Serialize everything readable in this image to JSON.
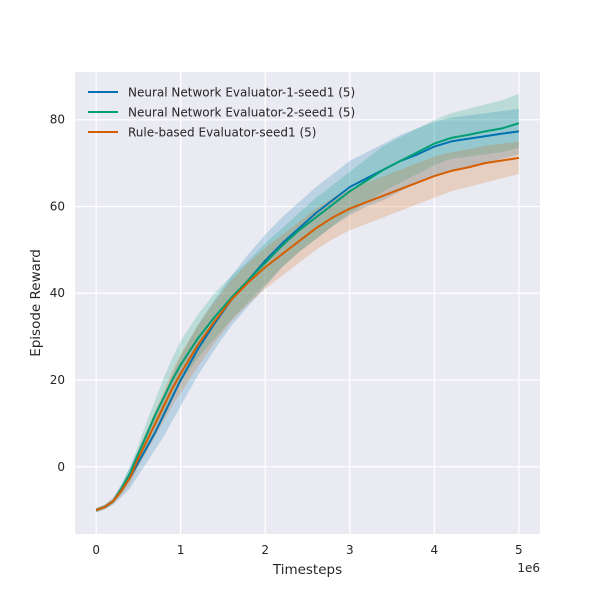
{
  "chart_data": {
    "type": "line",
    "xlabel": "Timesteps",
    "ylabel": "Episode Reward",
    "x_offset_label": "1e6",
    "xlim": [
      -0.25,
      5.25
    ],
    "ylim": [
      -15.5,
      91
    ],
    "xticks": [
      0,
      1,
      2,
      3,
      4,
      5
    ],
    "yticks": [
      0,
      20,
      40,
      60,
      80
    ],
    "grid": true,
    "legend_position": "top-left",
    "x": [
      0,
      0.1,
      0.2,
      0.3,
      0.4,
      0.5,
      0.6,
      0.7,
      0.8,
      0.9,
      1.0,
      1.2,
      1.4,
      1.6,
      1.8,
      2.0,
      2.2,
      2.4,
      2.6,
      2.8,
      3.0,
      3.2,
      3.4,
      3.6,
      3.8,
      4.0,
      4.2,
      4.4,
      4.6,
      4.8,
      5.0
    ],
    "series": [
      {
        "name": "Neural Network Evaluator-1-seed1 (5)",
        "color": "#0072b2",
        "values": [
          -10,
          -9.3,
          -8,
          -5.5,
          -2.5,
          1,
          4.5,
          8,
          12,
          16,
          20,
          27,
          33,
          38.5,
          43,
          47.5,
          51.5,
          55,
          58.5,
          61.5,
          64.5,
          66.5,
          68.5,
          70.5,
          72,
          73.8,
          75,
          75.6,
          76.2,
          76.8,
          77.3
        ],
        "lower": [
          -10.5,
          -9.8,
          -8.8,
          -7,
          -5,
          -2,
          1,
          4,
          7,
          10.5,
          14,
          21,
          27,
          32.5,
          37,
          41.5,
          46,
          49.5,
          52.5,
          55.5,
          58,
          60,
          61.5,
          63.5,
          65.5,
          67,
          68,
          69,
          70,
          71,
          72
        ],
        "upper": [
          -9.5,
          -8.8,
          -7.2,
          -4,
          0,
          4,
          8,
          12,
          16.5,
          21,
          25.5,
          32.5,
          38.5,
          44,
          49,
          53.5,
          57.5,
          61,
          64.5,
          67.5,
          70.5,
          72.5,
          74.5,
          76.5,
          78,
          79.5,
          80.5,
          81,
          81.5,
          82,
          82.5
        ]
      },
      {
        "name": "Neural Network Evaluator-2-seed1 (5)",
        "color": "#009e73",
        "values": [
          -10,
          -9.3,
          -8,
          -5,
          -1.5,
          3,
          7.5,
          12,
          16,
          20,
          23.5,
          29.5,
          34.5,
          39,
          43,
          47,
          51,
          54.5,
          57.5,
          60.5,
          63.5,
          66,
          68.5,
          70.5,
          72.5,
          74.5,
          75.8,
          76.5,
          77.3,
          78,
          79.2
        ],
        "lower": [
          -10.5,
          -9.8,
          -8.5,
          -6,
          -3,
          1,
          5,
          9,
          12.5,
          16,
          19.5,
          25,
          29.5,
          34,
          38,
          42,
          46,
          49.5,
          52.5,
          55.5,
          58.5,
          61,
          63.5,
          65.5,
          67.5,
          69.5,
          71,
          71.5,
          72,
          72.5,
          73.5
        ],
        "upper": [
          -9.5,
          -8.8,
          -7.5,
          -4,
          0,
          5,
          10.5,
          15.5,
          20.5,
          25,
          29,
          35,
          40,
          44,
          47.5,
          51.5,
          55,
          58.5,
          62,
          65,
          68,
          71,
          74,
          76,
          78,
          80,
          81.5,
          82.5,
          83.5,
          84.5,
          86
        ]
      },
      {
        "name": "Rule-based Evaluator-seed1 (5)",
        "color": "#d55e00",
        "values": [
          -10,
          -9.3,
          -8,
          -5.5,
          -2.5,
          2,
          6,
          10,
          14,
          18,
          21.5,
          28,
          33.5,
          38.5,
          42.5,
          46,
          49,
          52,
          55,
          57.5,
          59.5,
          61,
          62.5,
          64,
          65.5,
          67,
          68.2,
          69,
          70,
          70.6,
          71.2
        ],
        "lower": [
          -10.5,
          -9.8,
          -8.5,
          -6.5,
          -4,
          0,
          3.5,
          7,
          10.5,
          14,
          17,
          23,
          28.5,
          33.5,
          37.5,
          41,
          44,
          47,
          50,
          52.5,
          54.5,
          56,
          57.5,
          59,
          60.5,
          62,
          63.5,
          64.5,
          65.5,
          66.5,
          67.5
        ],
        "upper": [
          -9.5,
          -8.8,
          -7.2,
          -4.5,
          -1,
          4,
          8.5,
          13,
          17.5,
          22,
          26,
          32.5,
          38,
          43,
          47,
          50.5,
          53.5,
          56.5,
          59.5,
          62,
          64,
          65.5,
          67,
          68.5,
          70,
          71.5,
          72.5,
          73.2,
          74,
          74.5,
          75
        ]
      }
    ]
  }
}
